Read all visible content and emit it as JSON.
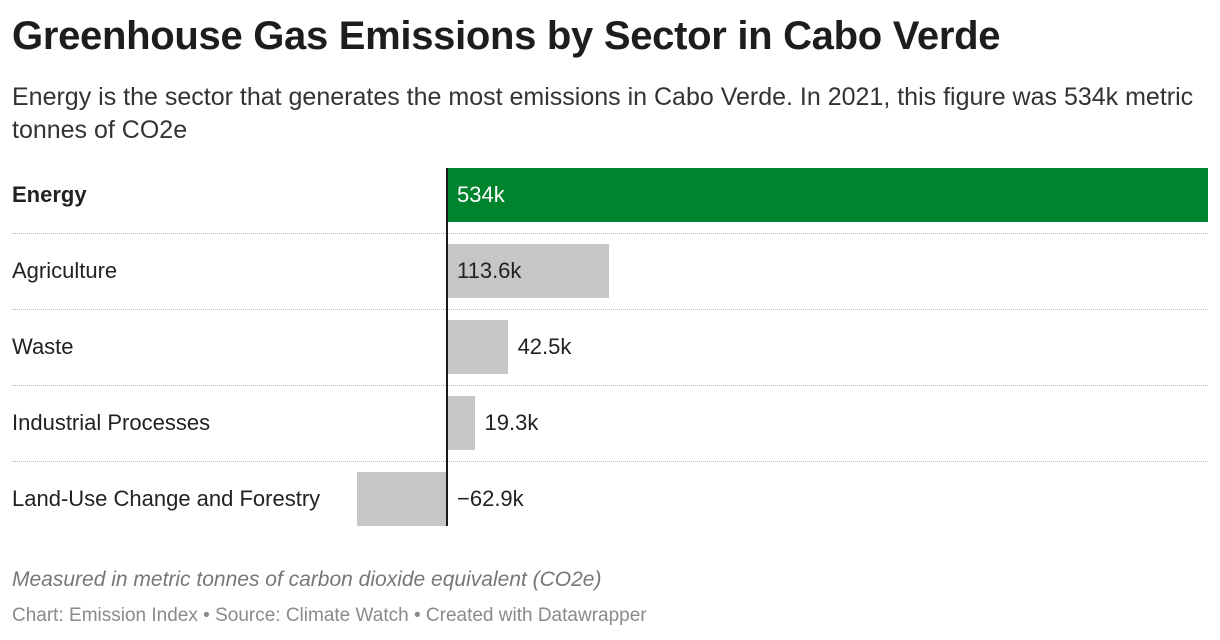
{
  "title": "Greenhouse Gas Emissions by Sector in Cabo Verde",
  "subtitle": "Energy is the sector that generates the most emissions in Cabo Verde. In 2021, this figure was 534k metric tonnes of CO2e",
  "notes": "Measured in metric tonnes of carbon dioxide equivalent (CO2e)",
  "footer": {
    "chart_credit": "Chart: Emission Index",
    "source": "Source: Climate Watch",
    "created_with": "Created with Datawrapper",
    "separator": "•"
  },
  "colors": {
    "highlight": "#00832d",
    "default": "#c6c6c6",
    "zero_line": "#1a1a1a"
  },
  "chart_data": {
    "type": "bar",
    "orientation": "horizontal",
    "categories": [
      "Energy",
      "Agriculture",
      "Waste",
      "Industrial Processes",
      "Land-Use Change and Forestry"
    ],
    "values": [
      534,
      113.6,
      42.5,
      19.3,
      -62.9
    ],
    "value_labels": [
      "534k",
      "113.6k",
      "42.5k",
      "19.3k",
      "−62.9k"
    ],
    "unit": "k metric tonnes CO2e",
    "highlighted": [
      "Energy"
    ],
    "xlim": [
      -62.9,
      534
    ],
    "grid": false,
    "legend": "none"
  }
}
